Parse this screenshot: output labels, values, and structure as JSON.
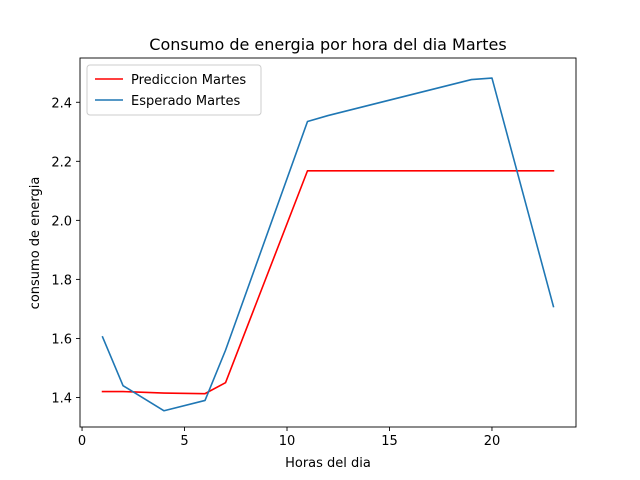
{
  "chart_data": {
    "type": "line",
    "title": "Consumo de energia por hora del dia Martes",
    "xlabel": "Horas del dia",
    "ylabel": "consumo de energia",
    "xlim": [
      -0.1,
      24.1
    ],
    "ylim": [
      1.3,
      2.55
    ],
    "xticks": [
      0,
      5,
      10,
      15,
      20
    ],
    "yticks": [
      1.4,
      1.6,
      1.8,
      2.0,
      2.2,
      2.4
    ],
    "xtick_labels": [
      "0",
      "5",
      "10",
      "15",
      "20"
    ],
    "ytick_labels": [
      "1.4",
      "1.6",
      "1.8",
      "2.0",
      "2.2",
      "2.4"
    ],
    "grid": false,
    "legend_position": "top-left",
    "series": [
      {
        "name": "Prediccion Martes",
        "color": "#ff0000",
        "x": [
          1,
          2,
          4,
          6,
          7,
          11,
          12,
          19,
          20,
          23
        ],
        "y": [
          1.42,
          1.42,
          1.415,
          1.413,
          1.45,
          2.168,
          2.168,
          2.168,
          2.168,
          2.168
        ]
      },
      {
        "name": "Esperado Martes",
        "color": "#1f77b4",
        "x": [
          1,
          2,
          4,
          6,
          7,
          11,
          12,
          19,
          20,
          23
        ],
        "y": [
          1.605,
          1.44,
          1.355,
          1.39,
          1.56,
          2.335,
          2.355,
          2.477,
          2.482,
          1.708
        ]
      }
    ]
  }
}
